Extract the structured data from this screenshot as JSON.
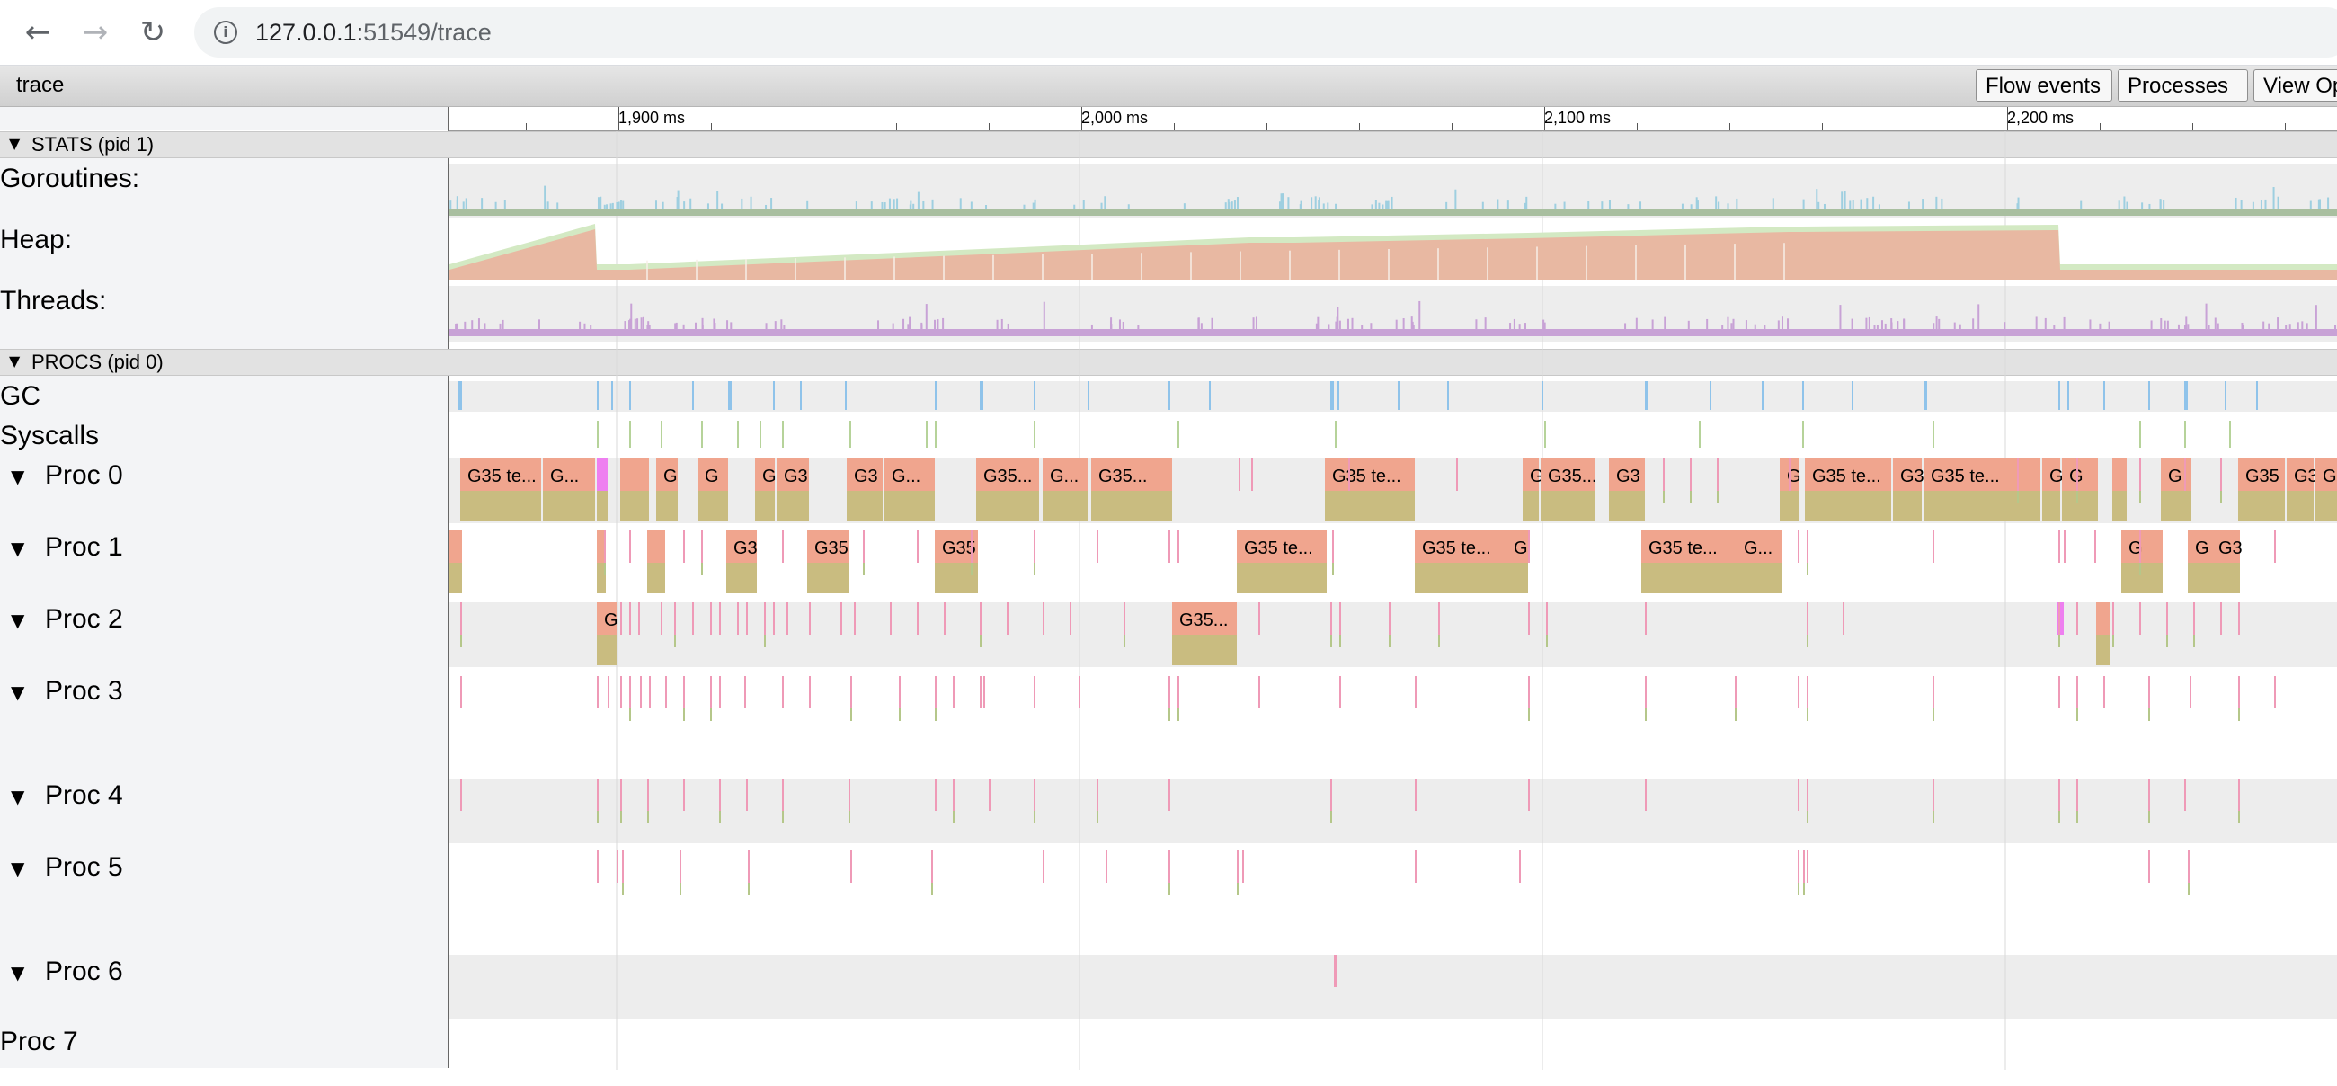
{
  "browser": {
    "url_host": "127.0.0.1:",
    "url_rest": "51549/trace",
    "back_icon": "back-arrow-icon",
    "forward_icon": "forward-arrow-icon",
    "reload_icon": "reload-icon",
    "info_icon": "info-icon"
  },
  "toolbar": {
    "title": "trace",
    "flow_events": "Flow events",
    "processes": "Processes",
    "view_options": "View Opt"
  },
  "ruler": {
    "labels": [
      "1,900 ms",
      "2,000 ms",
      "2,100 ms",
      "2,200 ms"
    ]
  },
  "stats": {
    "header": "STATS (pid 1)",
    "goroutines": "Goroutines:",
    "heap": "Heap:",
    "threads": "Threads:"
  },
  "procs": {
    "header": "PROCS (pid 0)",
    "gc": "GC",
    "syscalls": "Syscalls",
    "proc0": "Proc 0",
    "proc1": "Proc 1",
    "proc2": "Proc 2",
    "proc3": "Proc 3",
    "proc4": "Proc 4",
    "proc5": "Proc 5",
    "proc6": "Proc 6",
    "proc7": "Proc 7"
  },
  "slices": {
    "proc0": [
      "G35 te...",
      "G...",
      "G",
      "G",
      "G",
      "G3",
      "G3",
      "G...",
      "G35...",
      "G...",
      "G35...",
      "G35 te...",
      "G",
      "G35...",
      "G3",
      "G",
      "G35 te...",
      "G3",
      "G35 te...",
      "G...",
      "G",
      "G",
      "G35",
      "G3",
      "G3"
    ],
    "proc1": [
      "G3",
      "G35",
      "G35",
      "G35 te...",
      "G35 te...",
      "G",
      "G35 te...",
      "G...",
      "G",
      "G",
      "G3"
    ],
    "proc2": [
      "G",
      "G35..."
    ]
  },
  "colors": {
    "running": "#f0a58e",
    "syscall_band": "#c9bc80",
    "gc_mark": "#8fc3ea",
    "event_mark": "#ef9ab7",
    "heap_alloc": "#e8b8a2",
    "heap_next": "#d3e9c3",
    "goroutines_mark": "#9ecfe0",
    "threads_mark": "#c8a2d6"
  }
}
